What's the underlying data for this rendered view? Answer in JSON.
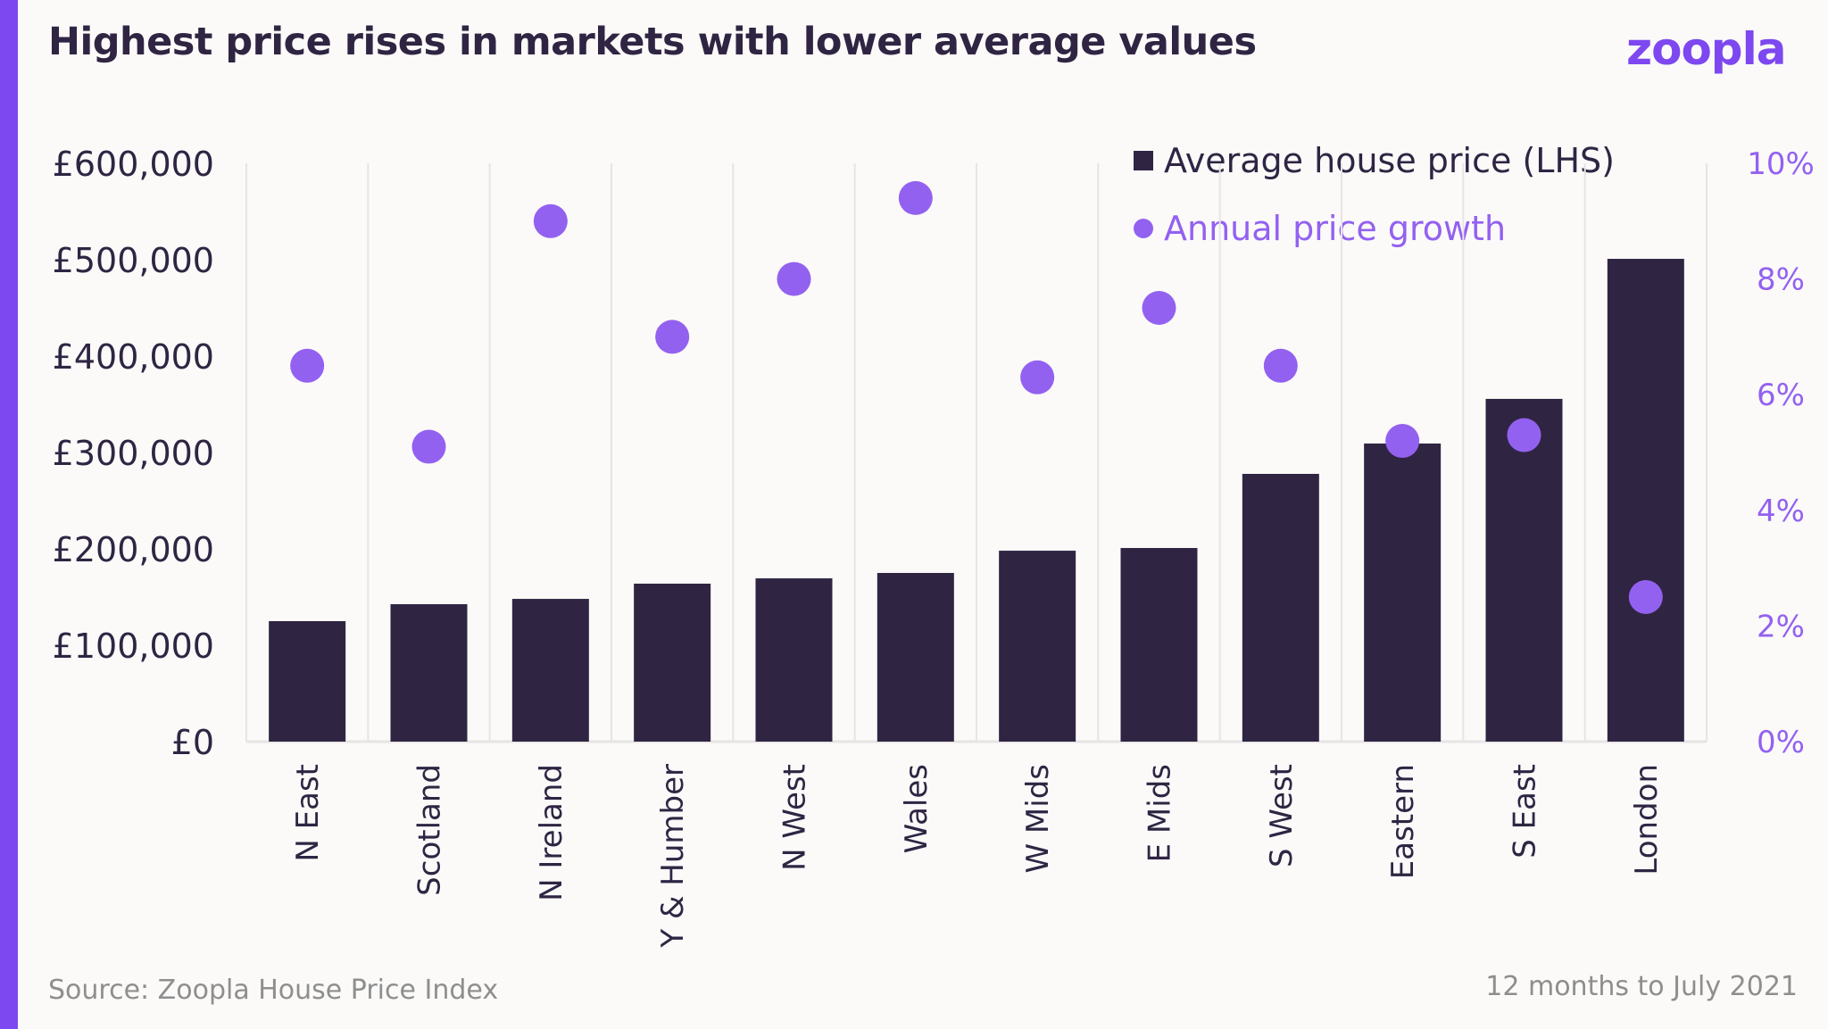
{
  "header": {
    "title": "Highest price rises in markets with lower average values",
    "logo": "zoopla"
  },
  "legend": {
    "bar_label": "Average house price (LHS)",
    "dot_label": "Annual price growth"
  },
  "footer": {
    "source": "Source: Zoopla House Price Index",
    "period": "12 months to July 2021"
  },
  "colors": {
    "accent": "#7d48ef",
    "bar": "#2f2543",
    "dot": "#9361f0",
    "text": "#2f2543",
    "muted": "#8e8e8e",
    "grid": "#e6e4e4",
    "background": "#fbfaf9"
  },
  "chart_data": {
    "type": "bar",
    "title": "Highest price rises in markets with lower average values",
    "xlabel": "",
    "ylabel": "",
    "categories": [
      "N East",
      "Scotland",
      "N Ireland",
      "Y & Humber",
      "N West",
      "Wales",
      "W Mids",
      "E Mids",
      "S West",
      "Eastern",
      "S East",
      "London"
    ],
    "series": [
      {
        "name": "Average house price (LHS)",
        "type": "bar",
        "axis": "left",
        "values": [
          125000,
          142600,
          148100,
          163900,
          169400,
          175000,
          198100,
          200900,
          277800,
          309300,
          355600,
          500900
        ]
      },
      {
        "name": "Annual price growth",
        "type": "scatter",
        "axis": "right",
        "values": [
          6.5,
          5.1,
          9.0,
          7.0,
          8.0,
          9.4,
          6.3,
          7.5,
          6.5,
          5.2,
          5.3,
          2.5
        ]
      }
    ],
    "ylim": [
      0,
      600000
    ],
    "y_ticks": [
      0,
      100000,
      200000,
      300000,
      400000,
      500000,
      600000
    ],
    "y_tick_labels": [
      "£0",
      "£100,000",
      "£200,000",
      "£300,000",
      "£400,000",
      "£500,000",
      "£600,000"
    ],
    "y2lim": [
      0,
      10
    ],
    "y2_ticks": [
      0,
      2,
      4,
      6,
      8,
      10
    ],
    "y2_tick_labels": [
      "0%",
      "2%",
      "4%",
      "6%",
      "8%",
      "10%"
    ],
    "grid": "vertical category separators",
    "legend_position": "top-right"
  }
}
